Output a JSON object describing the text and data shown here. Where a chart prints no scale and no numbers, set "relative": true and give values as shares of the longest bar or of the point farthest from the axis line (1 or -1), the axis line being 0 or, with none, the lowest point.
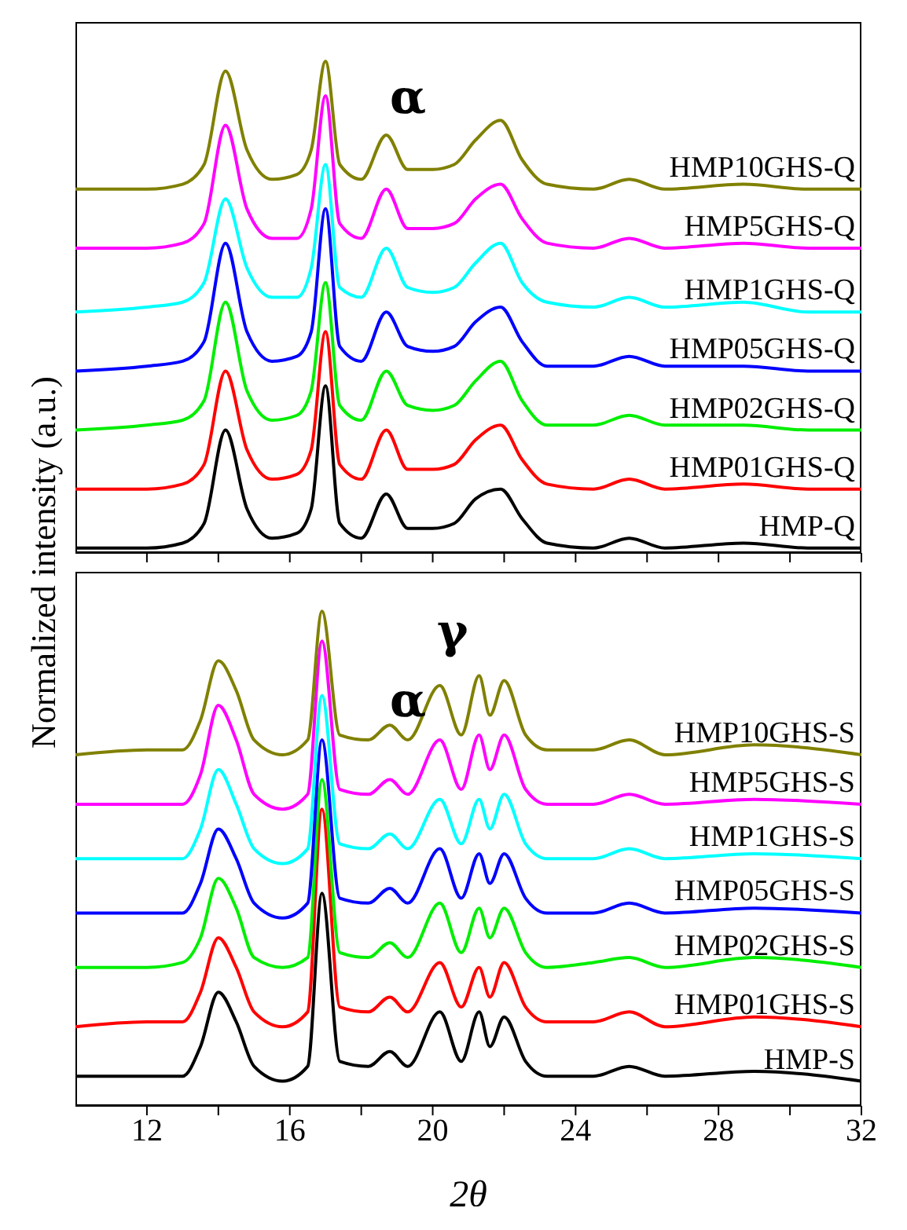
{
  "chart_data": [
    {
      "type": "line",
      "relative": true,
      "tick_labels": false,
      "marker": "none",
      "line_style": "solid",
      "ylabel": "Normalized intensity (a.u.)",
      "xlim": [
        10,
        32
      ],
      "xticks": [
        12,
        {
          "value": 14,
          "label": null
        },
        16,
        {
          "value": 18,
          "label": null
        },
        20,
        {
          "value": 22,
          "label": null
        },
        24,
        {
          "value": 26,
          "label": null
        },
        28,
        {
          "value": 30,
          "label": null
        },
        32
      ],
      "x": [
        10,
        12,
        13,
        13.6,
        14.2,
        14.8,
        15.5,
        16.2,
        16.6,
        17.0,
        17.4,
        18.0,
        18.7,
        19.3,
        20.0,
        20.6,
        21.2,
        21.9,
        22.5,
        23.2,
        24.5,
        25.5,
        26.5,
        28.7,
        30.5,
        32
      ],
      "annotations": [
        "α"
      ],
      "series": [
        {
          "name": "HMP-Q",
          "color": "#000000",
          "values": [
            0.01,
            0.01,
            0.02,
            0.06,
            0.25,
            0.09,
            0.03,
            0.04,
            0.09,
            0.34,
            0.06,
            0.03,
            0.12,
            0.05,
            0.05,
            0.06,
            0.11,
            0.13,
            0.07,
            0.02,
            0.01,
            0.03,
            0.01,
            0.02,
            0.01,
            0.01
          ]
        },
        {
          "name": "HMP01GHS-Q",
          "color": "#ff0000",
          "values": [
            0.13,
            0.13,
            0.14,
            0.18,
            0.37,
            0.21,
            0.15,
            0.16,
            0.21,
            0.45,
            0.18,
            0.15,
            0.25,
            0.17,
            0.17,
            0.18,
            0.23,
            0.26,
            0.19,
            0.14,
            0.13,
            0.15,
            0.13,
            0.14,
            0.13,
            0.13
          ]
        },
        {
          "name": "HMP02GHS-Q",
          "color": "#00ee00",
          "values": [
            0.25,
            0.26,
            0.27,
            0.31,
            0.51,
            0.33,
            0.27,
            0.28,
            0.33,
            0.55,
            0.3,
            0.27,
            0.37,
            0.3,
            0.29,
            0.3,
            0.35,
            0.39,
            0.31,
            0.26,
            0.26,
            0.28,
            0.26,
            0.26,
            0.25,
            0.25
          ]
        },
        {
          "name": "HMP05GHS-Q",
          "color": "#0000ff",
          "values": [
            0.37,
            0.38,
            0.39,
            0.43,
            0.63,
            0.45,
            0.39,
            0.4,
            0.45,
            0.7,
            0.42,
            0.39,
            0.49,
            0.42,
            0.41,
            0.42,
            0.47,
            0.5,
            0.43,
            0.38,
            0.38,
            0.4,
            0.38,
            0.38,
            0.37,
            0.37
          ]
        },
        {
          "name": "HMP1GHS-Q",
          "color": "#00ffff",
          "values": [
            0.49,
            0.5,
            0.51,
            0.55,
            0.72,
            0.58,
            0.52,
            0.52,
            0.58,
            0.79,
            0.54,
            0.52,
            0.62,
            0.54,
            0.53,
            0.54,
            0.59,
            0.63,
            0.55,
            0.51,
            0.5,
            0.52,
            0.5,
            0.51,
            0.49,
            0.49
          ]
        },
        {
          "name": "HMP5GHS-Q",
          "color": "#ff00ff",
          "values": [
            0.62,
            0.62,
            0.63,
            0.67,
            0.87,
            0.7,
            0.64,
            0.64,
            0.7,
            0.93,
            0.67,
            0.64,
            0.74,
            0.66,
            0.66,
            0.67,
            0.72,
            0.75,
            0.68,
            0.63,
            0.62,
            0.64,
            0.62,
            0.63,
            0.62,
            0.62
          ]
        },
        {
          "name": "HMP10GHS-Q",
          "color": "#808000",
          "values": [
            0.74,
            0.74,
            0.75,
            0.79,
            0.98,
            0.82,
            0.76,
            0.77,
            0.82,
            1,
            0.79,
            0.76,
            0.85,
            0.78,
            0.78,
            0.79,
            0.84,
            0.88,
            0.8,
            0.75,
            0.74,
            0.76,
            0.74,
            0.75,
            0.74,
            0.74
          ]
        }
      ]
    },
    {
      "type": "line",
      "relative": true,
      "tick_labels": "x",
      "marker": "none",
      "line_style": "solid",
      "xlabel": "2θ",
      "xlim": [
        10,
        32
      ],
      "xticks": [
        12,
        {
          "value": 14,
          "label": null
        },
        16,
        {
          "value": 18,
          "label": null
        },
        20,
        {
          "value": 22,
          "label": null
        },
        24,
        {
          "value": 26,
          "label": null
        },
        28,
        {
          "value": 30,
          "label": null
        },
        32
      ],
      "x": [
        10,
        12,
        13,
        13.5,
        14.0,
        14.5,
        15.0,
        15.8,
        16.5,
        16.9,
        17.4,
        18.2,
        18.8,
        19.3,
        20.2,
        20.8,
        21.3,
        21.6,
        22.0,
        22.6,
        23.2,
        24.5,
        25.5,
        26.5,
        29,
        32
      ],
      "annotations": [
        "α",
        "γ"
      ],
      "series": [
        {
          "name": "HMP-S",
          "color": "#000000",
          "values": [
            0.06,
            0.06,
            0.06,
            0.12,
            0.23,
            0.17,
            0.08,
            0.05,
            0.08,
            0.43,
            0.09,
            0.08,
            0.11,
            0.08,
            0.19,
            0.09,
            0.19,
            0.12,
            0.18,
            0.09,
            0.06,
            0.06,
            0.08,
            0.06,
            0.07,
            0.05
          ]
        },
        {
          "name": "HMP01GHS-S",
          "color": "#ff0000",
          "values": [
            0.16,
            0.17,
            0.17,
            0.23,
            0.34,
            0.28,
            0.19,
            0.16,
            0.19,
            0.6,
            0.2,
            0.19,
            0.22,
            0.19,
            0.29,
            0.2,
            0.28,
            0.22,
            0.29,
            0.2,
            0.17,
            0.17,
            0.19,
            0.16,
            0.18,
            0.16
          ]
        },
        {
          "name": "HMP02GHS-S",
          "color": "#00ee00",
          "values": [
            0.28,
            0.28,
            0.29,
            0.34,
            0.46,
            0.4,
            0.3,
            0.28,
            0.3,
            0.66,
            0.31,
            0.3,
            0.33,
            0.3,
            0.41,
            0.31,
            0.4,
            0.34,
            0.4,
            0.31,
            0.28,
            0.29,
            0.3,
            0.28,
            0.3,
            0.28
          ]
        },
        {
          "name": "HMP05GHS-S",
          "color": "#0000ff",
          "values": [
            0.39,
            0.39,
            0.39,
            0.45,
            0.56,
            0.5,
            0.41,
            0.38,
            0.41,
            0.74,
            0.42,
            0.41,
            0.44,
            0.41,
            0.52,
            0.42,
            0.51,
            0.45,
            0.51,
            0.42,
            0.39,
            0.39,
            0.41,
            0.39,
            0.4,
            0.39
          ]
        },
        {
          "name": "HMP1GHS-S",
          "color": "#00ffff",
          "values": [
            0.5,
            0.5,
            0.5,
            0.56,
            0.68,
            0.61,
            0.52,
            0.49,
            0.52,
            0.83,
            0.53,
            0.52,
            0.55,
            0.52,
            0.62,
            0.53,
            0.62,
            0.56,
            0.63,
            0.53,
            0.5,
            0.5,
            0.52,
            0.5,
            0.51,
            0.5
          ]
        },
        {
          "name": "HMP5GHS-S",
          "color": "#ff00ff",
          "values": [
            0.61,
            0.61,
            0.61,
            0.67,
            0.81,
            0.74,
            0.63,
            0.6,
            0.63,
            0.94,
            0.64,
            0.63,
            0.66,
            0.63,
            0.74,
            0.64,
            0.75,
            0.68,
            0.75,
            0.64,
            0.61,
            0.61,
            0.63,
            0.61,
            0.62,
            0.61
          ]
        },
        {
          "name": "HMP10GHS-S",
          "color": "#808000",
          "values": [
            0.71,
            0.72,
            0.72,
            0.78,
            0.9,
            0.84,
            0.74,
            0.71,
            0.74,
            1,
            0.75,
            0.74,
            0.77,
            0.74,
            0.85,
            0.75,
            0.87,
            0.79,
            0.86,
            0.75,
            0.72,
            0.72,
            0.74,
            0.71,
            0.73,
            0.71
          ]
        }
      ]
    }
  ]
}
